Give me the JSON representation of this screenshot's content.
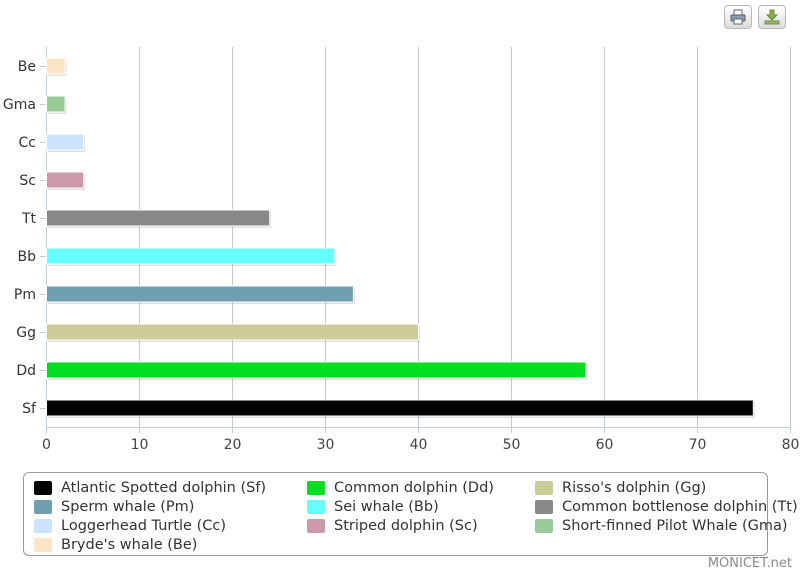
{
  "toolbar": {
    "print_icon": "printer-icon",
    "export_icon": "download-icon"
  },
  "chart_data": {
    "type": "bar",
    "orientation": "horizontal",
    "categories": [
      "Be",
      "Gma",
      "Cc",
      "Sc",
      "Tt",
      "Bb",
      "Pm",
      "Gg",
      "Dd",
      "Sf"
    ],
    "values": [
      2,
      2,
      4,
      4,
      24,
      31,
      33,
      40,
      58,
      76
    ],
    "colors": [
      "#fce5c6",
      "#99cc99",
      "#cce4fb",
      "#cc99aa",
      "#888888",
      "#66ffff",
      "#6f9faf",
      "#cccc99",
      "#00dd22",
      "#000000"
    ],
    "xlim": [
      0,
      80
    ],
    "xticks": [
      "0",
      "10",
      "20",
      "30",
      "40",
      "50",
      "60",
      "70",
      "80"
    ],
    "grid": true,
    "legend_position": "bottom",
    "legend": [
      {
        "label": "Atlantic Spotted dolphin (Sf)",
        "color": "#000000"
      },
      {
        "label": "Common dolphin (Dd)",
        "color": "#00dd22"
      },
      {
        "label": "Risso's dolphin (Gg)",
        "color": "#cccc99"
      },
      {
        "label": "Sperm whale (Pm)",
        "color": "#6f9faf"
      },
      {
        "label": "Sei whale (Bb)",
        "color": "#66ffff"
      },
      {
        "label": "Common bottlenose dolphin (Tt)",
        "color": "#888888"
      },
      {
        "label": "Loggerhead Turtle (Cc)",
        "color": "#cce4fb"
      },
      {
        "label": "Striped dolphin (Sc)",
        "color": "#cc99aa"
      },
      {
        "label": "Short-finned Pilot Whale (Gma)",
        "color": "#99cc99"
      },
      {
        "label": "Bryde's whale (Be)",
        "color": "#fce5c6"
      }
    ]
  },
  "credit": "MONICET.net"
}
